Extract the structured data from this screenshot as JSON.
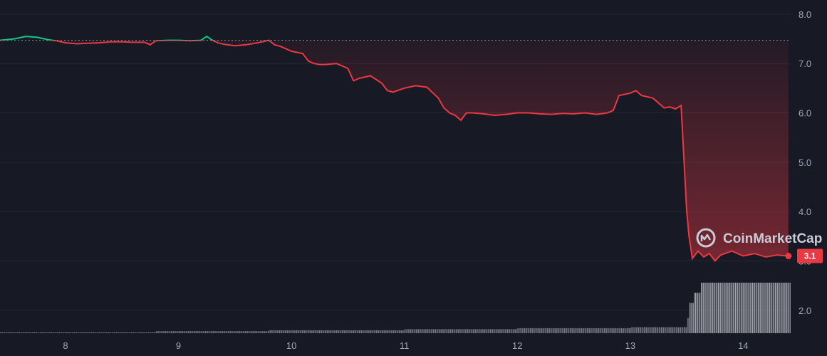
{
  "chart_data": {
    "type": "line",
    "title": "",
    "xlabel": "",
    "ylabel": "",
    "x_ticks": [
      "8",
      "9",
      "10",
      "11",
      "12",
      "13",
      "14"
    ],
    "x_range": [
      7.42,
      14.42
    ],
    "y_ticks": [
      "2.0",
      "3.0",
      "4.0",
      "5.0",
      "6.0",
      "7.0",
      "8.0"
    ],
    "ylim": [
      1.55,
      8.2
    ],
    "grid": true,
    "reference_price": 7.47,
    "last_price_label": "3.1",
    "last_price": 3.1,
    "price": {
      "x": [
        7.42,
        7.55,
        7.65,
        7.75,
        7.85,
        7.92,
        8.0,
        8.1,
        8.2,
        8.3,
        8.4,
        8.5,
        8.6,
        8.7,
        8.75,
        8.8,
        8.9,
        9.0,
        9.1,
        9.2,
        9.25,
        9.3,
        9.35,
        9.4,
        9.5,
        9.6,
        9.7,
        9.8,
        9.85,
        9.9,
        10.0,
        10.1,
        10.15,
        10.2,
        10.25,
        10.3,
        10.4,
        10.5,
        10.55,
        10.6,
        10.7,
        10.8,
        10.85,
        10.9,
        11.0,
        11.1,
        11.2,
        11.3,
        11.35,
        11.4,
        11.45,
        11.5,
        11.55,
        11.6,
        11.7,
        11.8,
        11.9,
        12.0,
        12.1,
        12.2,
        12.3,
        12.4,
        12.5,
        12.6,
        12.7,
        12.8,
        12.85,
        12.9,
        13.0,
        13.05,
        13.1,
        13.2,
        13.3,
        13.35,
        13.4,
        13.45,
        13.5,
        13.52,
        13.55,
        13.6,
        13.65,
        13.7,
        13.75,
        13.8,
        13.9,
        14.0,
        14.1,
        14.2,
        14.3,
        14.4
      ],
      "y": [
        7.47,
        7.5,
        7.55,
        7.53,
        7.48,
        7.46,
        7.42,
        7.4,
        7.41,
        7.42,
        7.44,
        7.44,
        7.43,
        7.43,
        7.38,
        7.46,
        7.47,
        7.47,
        7.46,
        7.47,
        7.55,
        7.47,
        7.42,
        7.39,
        7.36,
        7.38,
        7.42,
        7.47,
        7.38,
        7.35,
        7.25,
        7.2,
        7.05,
        7.0,
        6.98,
        6.98,
        7.0,
        6.9,
        6.65,
        6.7,
        6.75,
        6.6,
        6.45,
        6.42,
        6.5,
        6.55,
        6.52,
        6.3,
        6.1,
        6.0,
        5.95,
        5.85,
        6.0,
        6.0,
        5.98,
        5.95,
        5.97,
        6.0,
        6.0,
        5.98,
        5.97,
        5.99,
        5.98,
        6.0,
        5.97,
        6.0,
        6.05,
        6.35,
        6.4,
        6.45,
        6.35,
        6.3,
        6.1,
        6.12,
        6.08,
        6.15,
        4.0,
        3.5,
        3.05,
        3.2,
        3.08,
        3.15,
        3.0,
        3.12,
        3.2,
        3.1,
        3.15,
        3.08,
        3.12,
        3.1
      ]
    },
    "volume": {
      "x_start": 7.42,
      "x_end": 14.42,
      "levels": [
        {
          "from": 7.42,
          "to": 8.8,
          "value": 0.02
        },
        {
          "from": 8.8,
          "to": 9.8,
          "value": 0.04
        },
        {
          "from": 9.8,
          "to": 11.0,
          "value": 0.06
        },
        {
          "from": 11.0,
          "to": 12.0,
          "value": 0.08
        },
        {
          "from": 12.0,
          "to": 13.0,
          "value": 0.1
        },
        {
          "from": 13.0,
          "to": 13.5,
          "value": 0.12
        },
        {
          "from": 13.5,
          "to": 13.52,
          "value": 0.3
        },
        {
          "from": 13.52,
          "to": 13.56,
          "value": 0.6
        },
        {
          "from": 13.56,
          "to": 13.62,
          "value": 0.8
        },
        {
          "from": 13.62,
          "to": 14.42,
          "value": 1.0
        }
      ]
    },
    "colors": {
      "background": "#171924",
      "grid": "#242632",
      "up": "#16c784",
      "down": "#ea3943",
      "volume": "#cfd2dc",
      "tick_text": "#a1a7bb",
      "watermark": "#c9ccd6"
    },
    "watermark": "CoinMarketCap"
  }
}
